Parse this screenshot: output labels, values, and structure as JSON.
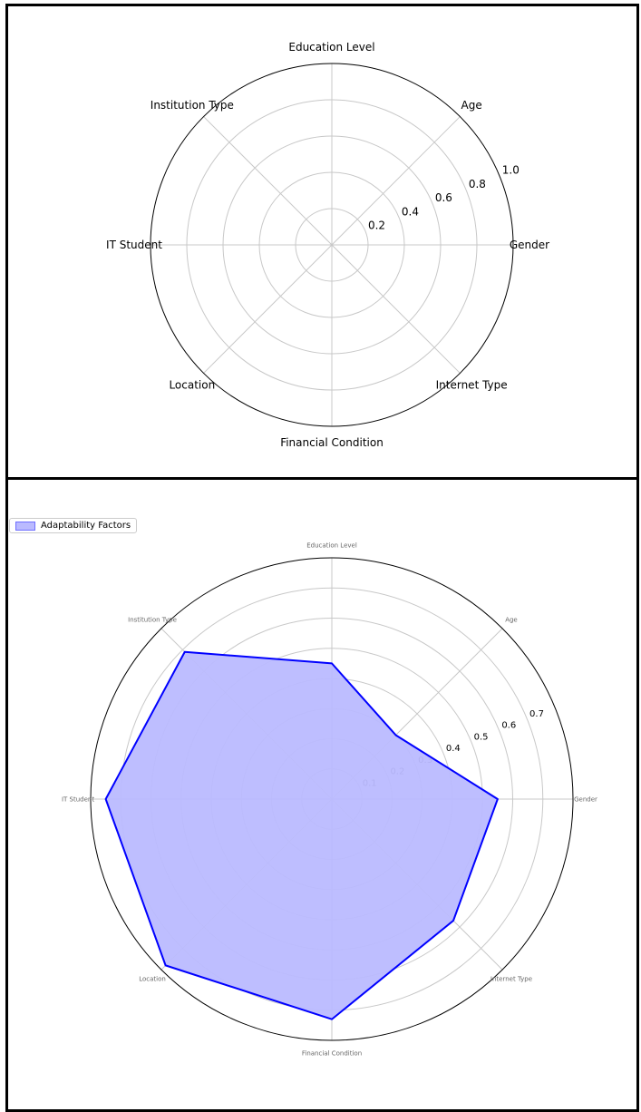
{
  "chart_data": [
    {
      "type": "radar",
      "categories": [
        "Gender",
        "Age",
        "Education Level",
        "Institution Type",
        "IT Student",
        "Location",
        "Financial Condition",
        "Internet Type"
      ],
      "radial_ticks": [
        "0.2",
        "0.4",
        "0.6",
        "0.8",
        "1.0"
      ],
      "rmax": 1.0,
      "grid": true,
      "series": []
    },
    {
      "type": "radar",
      "categories": [
        "Gender",
        "Age",
        "Education Level",
        "Institution Type",
        "IT Student",
        "Location",
        "Financial Condition",
        "Internet Type"
      ],
      "radial_ticks": [
        "0.1",
        "0.2",
        "0.3",
        "0.4",
        "0.5",
        "0.6",
        "0.7"
      ],
      "rmax": 0.8,
      "grid": true,
      "legend": "lower-left",
      "series": [
        {
          "name": "Adaptability Factors",
          "values": [
            0.55,
            0.3,
            0.45,
            0.69,
            0.75,
            0.78,
            0.73,
            0.57
          ],
          "color": "#0000ff",
          "fill": "#bbbbff"
        }
      ]
    }
  ]
}
